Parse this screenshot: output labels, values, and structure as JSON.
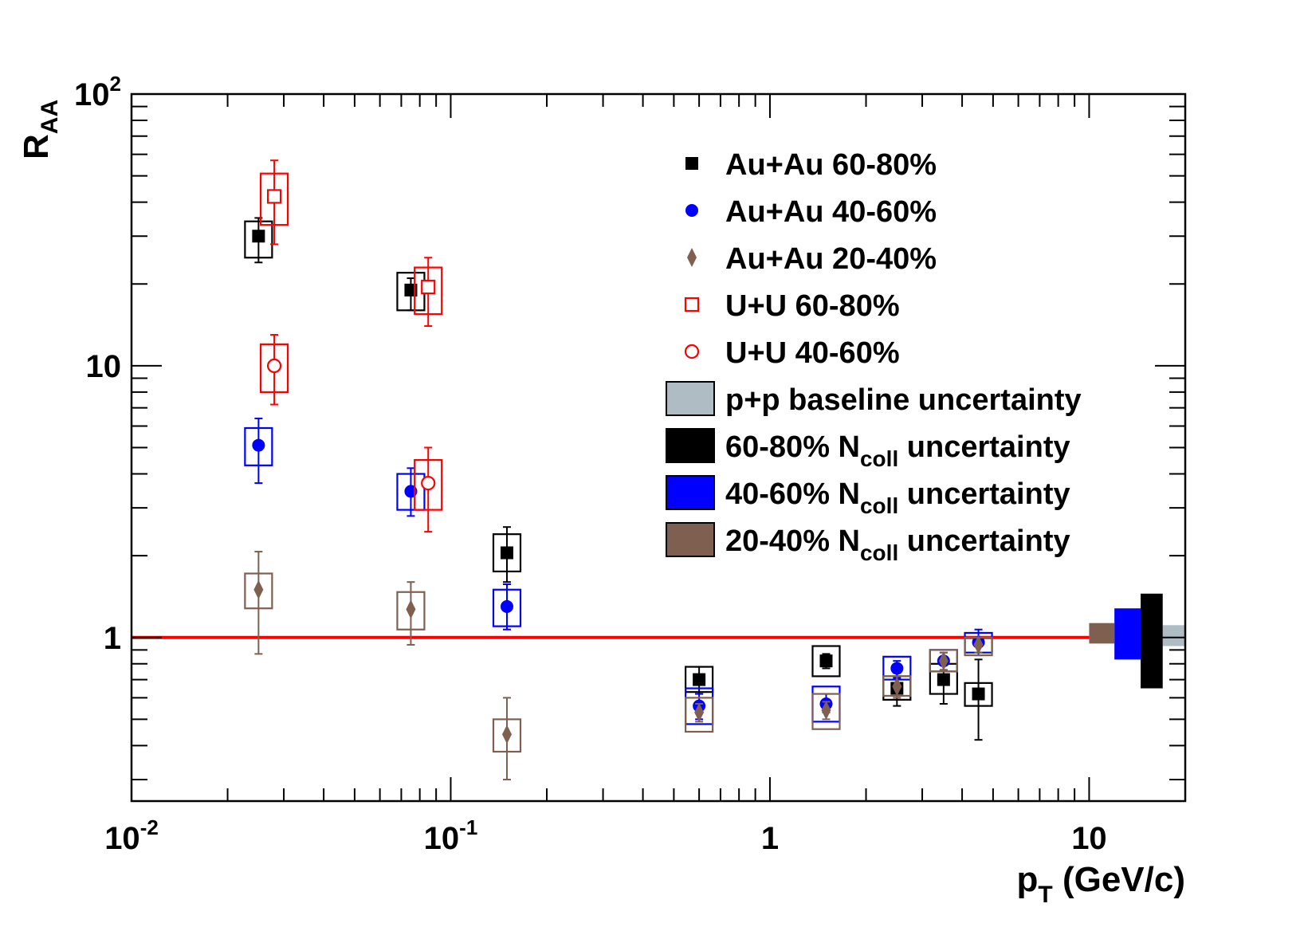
{
  "chart_data": {
    "type": "scatter",
    "title": "",
    "xlabel": "p",
    "xlabel_sub": "T",
    "xlabel_unit": " (GeV/c)",
    "ylabel": "R",
    "ylabel_sub": "AA",
    "x_scale": "log",
    "y_scale": "log",
    "xlim": [
      0.01,
      20
    ],
    "ylim": [
      0.25,
      100
    ],
    "grid": false,
    "legend_position": "top-right",
    "x_tick_labels": [
      {
        "base": "10",
        "exp": "-2",
        "value": 0.01
      },
      {
        "base": "10",
        "exp": "-1",
        "value": 0.1
      },
      {
        "base": "1",
        "exp": "",
        "value": 1
      },
      {
        "base": "10",
        "exp": "",
        "value": 10
      }
    ],
    "y_tick_labels": [
      {
        "base": "1",
        "exp": "",
        "value": 1
      },
      {
        "base": "10",
        "exp": "",
        "value": 10
      },
      {
        "base": "10",
        "exp": "2",
        "value": 100
      }
    ],
    "reference_line": {
      "y": 1,
      "color": "#ff0000"
    },
    "series": [
      {
        "name": "Au+Au 60-80%",
        "marker": "square-filled",
        "color": "#000000",
        "points": [
          {
            "x": 0.025,
            "y": 30,
            "err_low": 24,
            "err_high": 35,
            "sys_low": 25,
            "sys_high": 34
          },
          {
            "x": 0.075,
            "y": 19,
            "err_low": 16,
            "err_high": 21,
            "sys_low": 16,
            "sys_high": 22
          },
          {
            "x": 0.15,
            "y": 2.05,
            "err_low": 1.6,
            "err_high": 2.55,
            "sys_low": 1.75,
            "sys_high": 2.4
          },
          {
            "x": 0.6,
            "y": 0.7,
            "err_low": 0.62,
            "err_high": 0.78,
            "sys_low": 0.63,
            "sys_high": 0.78
          },
          {
            "x": 1.5,
            "y": 0.82,
            "err_low": 0.77,
            "err_high": 0.87,
            "sys_low": 0.72,
            "sys_high": 0.93
          },
          {
            "x": 2.5,
            "y": 0.65,
            "err_low": 0.56,
            "err_high": 0.74,
            "sys_low": 0.59,
            "sys_high": 0.72
          },
          {
            "x": 3.5,
            "y": 0.7,
            "err_low": 0.57,
            "err_high": 0.84,
            "sys_low": 0.62,
            "sys_high": 0.8
          },
          {
            "x": 4.5,
            "y": 0.62,
            "err_low": 0.42,
            "err_high": 0.83,
            "sys_low": 0.56,
            "sys_high": 0.68
          }
        ]
      },
      {
        "name": "Au+Au 40-60%",
        "marker": "circle-filled",
        "color": "#0000ff",
        "points": [
          {
            "x": 0.025,
            "y": 5.1,
            "err_low": 3.7,
            "err_high": 6.4,
            "sys_low": 4.3,
            "sys_high": 5.9
          },
          {
            "x": 0.075,
            "y": 3.45,
            "err_low": 2.8,
            "err_high": 4.2,
            "sys_low": 2.95,
            "sys_high": 4.0
          },
          {
            "x": 0.15,
            "y": 1.3,
            "err_low": 1.07,
            "err_high": 1.57,
            "sys_low": 1.1,
            "sys_high": 1.5
          },
          {
            "x": 0.6,
            "y": 0.56,
            "err_low": 0.5,
            "err_high": 0.62,
            "sys_low": 0.48,
            "sys_high": 0.65
          },
          {
            "x": 1.5,
            "y": 0.57,
            "err_low": 0.53,
            "err_high": 0.62,
            "sys_low": 0.49,
            "sys_high": 0.66
          },
          {
            "x": 2.5,
            "y": 0.77,
            "err_low": 0.71,
            "err_high": 0.82,
            "sys_low": 0.7,
            "sys_high": 0.85
          },
          {
            "x": 3.5,
            "y": 0.82,
            "err_low": 0.76,
            "err_high": 0.88,
            "sys_low": 0.75,
            "sys_high": 0.9
          },
          {
            "x": 4.5,
            "y": 0.96,
            "err_low": 0.86,
            "err_high": 1.07,
            "sys_low": 0.88,
            "sys_high": 1.04
          }
        ]
      },
      {
        "name": "Au+Au 20-40%",
        "marker": "diamond-filled",
        "color": "#7f5f50",
        "points": [
          {
            "x": 0.025,
            "y": 1.5,
            "err_low": 0.87,
            "err_high": 2.07,
            "sys_low": 1.28,
            "sys_high": 1.72
          },
          {
            "x": 0.075,
            "y": 1.27,
            "err_low": 0.94,
            "err_high": 1.6,
            "sys_low": 1.07,
            "sys_high": 1.47
          },
          {
            "x": 0.15,
            "y": 0.44,
            "err_low": 0.3,
            "err_high": 0.6,
            "sys_low": 0.38,
            "sys_high": 0.5
          },
          {
            "x": 0.6,
            "y": 0.53,
            "err_low": 0.49,
            "err_high": 0.57,
            "sys_low": 0.45,
            "sys_high": 0.6
          },
          {
            "x": 1.5,
            "y": 0.54,
            "err_low": 0.5,
            "err_high": 0.58,
            "sys_low": 0.46,
            "sys_high": 0.62
          },
          {
            "x": 2.5,
            "y": 0.66,
            "err_low": 0.6,
            "err_high": 0.72,
            "sys_low": 0.61,
            "sys_high": 0.72
          },
          {
            "x": 3.5,
            "y": 0.82,
            "err_low": 0.76,
            "err_high": 0.88,
            "sys_low": 0.75,
            "sys_high": 0.9
          },
          {
            "x": 4.5,
            "y": 0.94,
            "err_low": 0.88,
            "err_high": 1.0,
            "sys_low": 0.86,
            "sys_high": 1.0
          }
        ]
      },
      {
        "name": "U+U 60-80%",
        "marker": "square-open",
        "color": "#ff0000",
        "points": [
          {
            "x": 0.028,
            "y": 42,
            "err_low": 28,
            "err_high": 57,
            "sys_low": 33,
            "sys_high": 51
          },
          {
            "x": 0.085,
            "y": 19.5,
            "err_low": 14,
            "err_high": 25,
            "sys_low": 15.5,
            "sys_high": 23
          }
        ]
      },
      {
        "name": "U+U 40-60%",
        "marker": "circle-open",
        "color": "#ff0000",
        "points": [
          {
            "x": 0.028,
            "y": 10,
            "err_low": 7.2,
            "err_high": 13,
            "sys_low": 8,
            "sys_high": 12
          },
          {
            "x": 0.085,
            "y": 3.7,
            "err_low": 2.45,
            "err_high": 5.0,
            "sys_low": 2.95,
            "sys_high": 4.5
          }
        ]
      }
    ],
    "uncertainty_bands": [
      {
        "name": "p+p baseline uncertainty",
        "color": "#b0bcc4",
        "x_from": 17,
        "x_to": 20,
        "y_low": 0.93,
        "y_high": 1.11
      },
      {
        "name": "60-80% N",
        "name_sub": "coll",
        "name_suffix": " uncertainty",
        "color": "#000000",
        "x_from": 14.5,
        "x_to": 17,
        "y_low": 0.65,
        "y_high": 1.45
      },
      {
        "name": "40-60% N",
        "name_sub": "coll",
        "name_suffix": " uncertainty",
        "color": "#0000ff",
        "x_from": 12,
        "x_to": 14.5,
        "y_low": 0.83,
        "y_high": 1.28
      },
      {
        "name": "20-40% N",
        "name_sub": "coll",
        "name_suffix": " uncertainty",
        "color": "#7f5f50",
        "x_from": 10,
        "x_to": 12,
        "y_low": 0.95,
        "y_high": 1.13
      }
    ]
  }
}
